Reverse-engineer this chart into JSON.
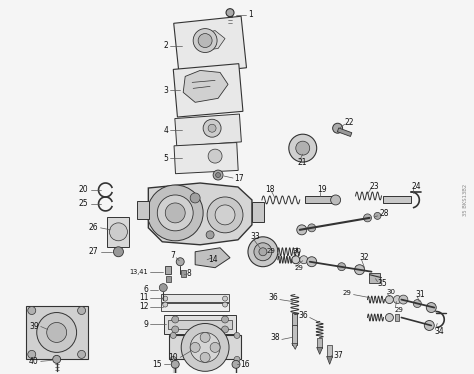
{
  "bg_color": "#f5f5f5",
  "fg_color": "#222222",
  "fig_width": 4.74,
  "fig_height": 3.74,
  "dpi": 100,
  "watermark": "35 BKS13B2"
}
